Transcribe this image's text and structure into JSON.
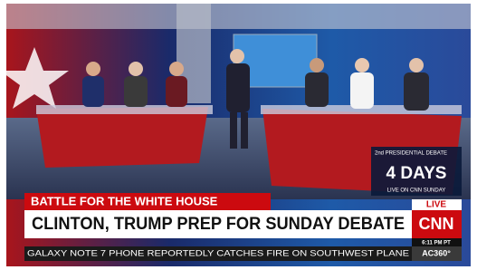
{
  "countdown": {
    "header": "2nd PRESIDENTIAL DEBATE",
    "days": "4 DAYS",
    "footer": "LIVE ON CNN SUNDAY"
  },
  "lower_third": {
    "kicker": "BATTLE FOR THE WHITE HOUSE",
    "headline": "CLINTON, TRUMP PREP FOR SUNDAY DEBATE"
  },
  "bug": {
    "live": "LIVE",
    "network": "CNN",
    "time": "6:11 PM PT"
  },
  "ticker": {
    "text": "GALAXY NOTE 7 PHONE REPORTEDLY CATCHES FIRE ON SOUTHWEST PLANE",
    "show": "AC360°"
  }
}
